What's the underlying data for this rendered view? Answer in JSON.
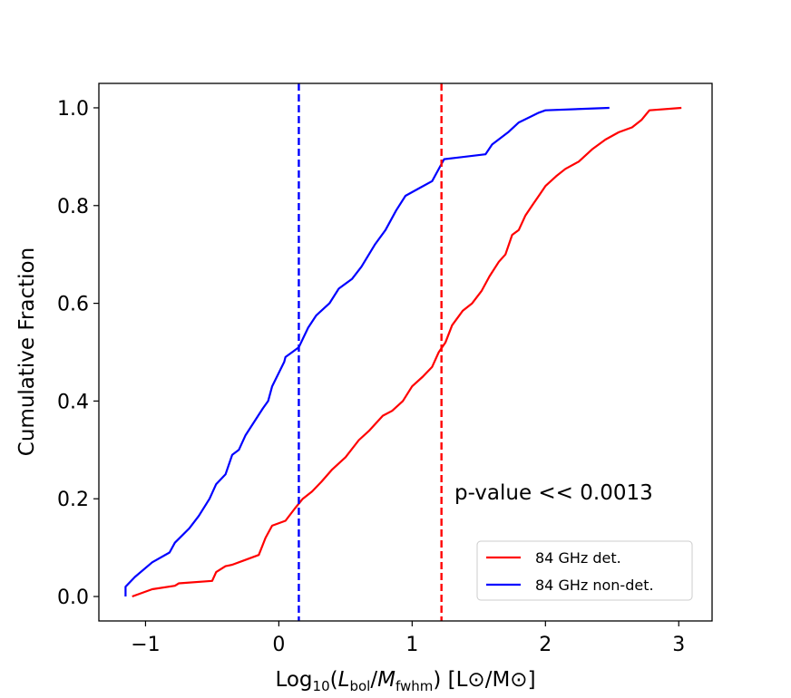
{
  "chart_data": {
    "type": "line",
    "title": "",
    "xlabel": {
      "prefix": "Log",
      "prefix_sub": "10",
      "open": "(",
      "num": "L",
      "num_sub": "bol",
      "slash": "/",
      "den": "M",
      "den_sub": "fwhm",
      "close": ")",
      "units": " [L⊙/M⊙]"
    },
    "ylabel": "Cumulative Fraction",
    "xlim": [
      -1.35,
      3.25
    ],
    "ylim": [
      -0.05,
      1.05
    ],
    "xticks": [
      -1,
      0,
      1,
      2,
      3
    ],
    "xtick_labels": [
      "−1",
      "0",
      "1",
      "2",
      "3"
    ],
    "yticks": [
      0.0,
      0.2,
      0.4,
      0.6,
      0.8,
      1.0
    ],
    "ytick_labels": [
      "0.0",
      "0.2",
      "0.4",
      "0.6",
      "0.8",
      "1.0"
    ],
    "grid": false,
    "legend_position": "lower-right",
    "series": [
      {
        "name": "84 GHz det.",
        "color": "#ff0000",
        "x": [
          -1.1,
          -0.95,
          -0.78,
          -0.75,
          -0.5,
          -0.47,
          -0.4,
          -0.35,
          -0.27,
          -0.15,
          -0.1,
          -0.05,
          0.05,
          0.12,
          0.18,
          0.25,
          0.32,
          0.4,
          0.5,
          0.6,
          0.68,
          0.78,
          0.85,
          0.93,
          1.0,
          1.08,
          1.15,
          1.2,
          1.25,
          1.3,
          1.38,
          1.45,
          1.52,
          1.58,
          1.65,
          1.7,
          1.75,
          1.8,
          1.85,
          1.9,
          1.95,
          2.0,
          2.08,
          2.15,
          2.25,
          2.35,
          2.45,
          2.55,
          2.65,
          2.72,
          2.78,
          3.02
        ],
        "y": [
          0.0,
          0.015,
          0.022,
          0.027,
          0.032,
          0.05,
          0.062,
          0.065,
          0.073,
          0.085,
          0.12,
          0.145,
          0.155,
          0.18,
          0.2,
          0.215,
          0.235,
          0.26,
          0.285,
          0.32,
          0.34,
          0.37,
          0.38,
          0.4,
          0.43,
          0.45,
          0.47,
          0.5,
          0.52,
          0.555,
          0.585,
          0.6,
          0.625,
          0.655,
          0.685,
          0.7,
          0.74,
          0.75,
          0.78,
          0.8,
          0.82,
          0.84,
          0.86,
          0.875,
          0.89,
          0.915,
          0.935,
          0.95,
          0.96,
          0.975,
          0.995,
          1.0
        ]
      },
      {
        "name": "84 GHz non-det.",
        "color": "#0000ff",
        "x": [
          -1.15,
          -1.15,
          -1.08,
          -0.95,
          -0.82,
          -0.78,
          -0.67,
          -0.6,
          -0.52,
          -0.47,
          -0.4,
          -0.35,
          -0.3,
          -0.25,
          -0.12,
          -0.08,
          -0.05,
          0.04,
          0.05,
          0.1,
          0.15,
          0.22,
          0.28,
          0.38,
          0.45,
          0.55,
          0.62,
          0.72,
          0.8,
          0.88,
          0.95,
          1.05,
          1.15,
          1.22,
          1.24,
          1.55,
          1.6,
          1.72,
          1.8,
          1.95,
          2.0,
          2.48
        ],
        "y": [
          0.0,
          0.02,
          0.04,
          0.07,
          0.09,
          0.11,
          0.14,
          0.165,
          0.2,
          0.23,
          0.25,
          0.29,
          0.3,
          0.33,
          0.385,
          0.4,
          0.43,
          0.48,
          0.49,
          0.5,
          0.51,
          0.55,
          0.575,
          0.6,
          0.63,
          0.65,
          0.675,
          0.72,
          0.75,
          0.79,
          0.82,
          0.835,
          0.85,
          0.885,
          0.895,
          0.905,
          0.925,
          0.95,
          0.97,
          0.99,
          0.995,
          1.0
        ]
      }
    ],
    "vlines": [
      {
        "name": "84 GHz non-det. median",
        "x": 0.15,
        "color": "#0000ff",
        "style": "dashed"
      },
      {
        "name": "84 GHz det. median",
        "x": 1.22,
        "color": "#ff0000",
        "style": "dashed"
      }
    ],
    "annotations": [
      {
        "text": "p-value << 0.0013",
        "x": 1.3,
        "y": 0.2
      }
    ]
  }
}
